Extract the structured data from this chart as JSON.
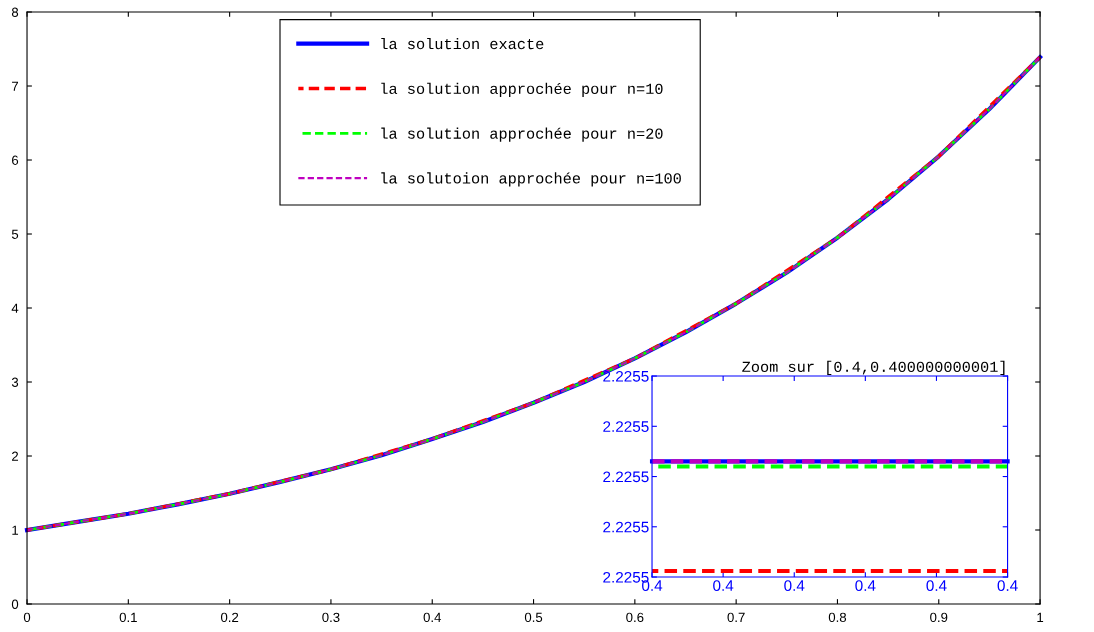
{
  "chart_data": [
    {
      "type": "line",
      "xlim": [
        0,
        1
      ],
      "ylim": [
        0,
        8
      ],
      "xticks": [
        0,
        0.1,
        0.2,
        0.3,
        0.4,
        0.5,
        0.6,
        0.7,
        0.8,
        0.9,
        1
      ],
      "yticks": [
        0,
        1,
        2,
        3,
        4,
        5,
        6,
        7,
        8
      ],
      "grid": false,
      "legend": "top",
      "series": [
        {
          "name": "la solution exacte",
          "color": "#0000ff",
          "line_style": "solid",
          "x": [
            0,
            0.05,
            0.1,
            0.15,
            0.2,
            0.25,
            0.3,
            0.35,
            0.4,
            0.45,
            0.5,
            0.55,
            0.6,
            0.65,
            0.7,
            0.75,
            0.8,
            0.85,
            0.9,
            0.95,
            1
          ],
          "values": [
            1,
            1.11,
            1.22,
            1.35,
            1.49,
            1.65,
            1.82,
            2.01,
            2.23,
            2.46,
            2.72,
            3.0,
            3.32,
            3.67,
            4.06,
            4.48,
            4.95,
            5.47,
            6.05,
            6.69,
            7.39
          ]
        },
        {
          "name": "la solution approchée pour n=10",
          "color": "#ff0000",
          "line_style": "dashed",
          "x": [
            0,
            0.1,
            0.2,
            0.3,
            0.4,
            0.5,
            0.6,
            0.7,
            0.8,
            0.9,
            1
          ],
          "values": [
            1,
            1.22,
            1.49,
            1.82,
            2.23,
            2.72,
            3.32,
            4.06,
            4.95,
            6.05,
            7.39
          ]
        },
        {
          "name": "la solution approchée pour n=20",
          "color": "#00ff00",
          "line_style": "dashed",
          "x": [
            0,
            0.05,
            0.1,
            0.15,
            0.2,
            0.25,
            0.3,
            0.35,
            0.4,
            0.45,
            0.5,
            0.55,
            0.6,
            0.65,
            0.7,
            0.75,
            0.8,
            0.85,
            0.9,
            0.95,
            1
          ],
          "values": [
            1,
            1.11,
            1.22,
            1.35,
            1.49,
            1.65,
            1.82,
            2.01,
            2.23,
            2.46,
            2.72,
            3.0,
            3.32,
            3.67,
            4.06,
            4.48,
            4.95,
            5.47,
            6.05,
            6.69,
            7.39
          ]
        },
        {
          "name": "la solutoion approchée pour n=100",
          "color": "#bf00bf",
          "line_style": "dashed",
          "x": [
            0,
            0.05,
            0.1,
            0.15,
            0.2,
            0.25,
            0.3,
            0.35,
            0.4,
            0.45,
            0.5,
            0.55,
            0.6,
            0.65,
            0.7,
            0.75,
            0.8,
            0.85,
            0.9,
            0.95,
            1
          ],
          "values": [
            1,
            1.11,
            1.22,
            1.35,
            1.49,
            1.65,
            1.82,
            2.01,
            2.23,
            2.46,
            2.72,
            3.0,
            3.32,
            3.67,
            4.06,
            4.48,
            4.95,
            5.47,
            6.05,
            6.69,
            7.39
          ]
        }
      ]
    },
    {
      "type": "line",
      "title": "Zoom sur [0.4,0.400000000001]",
      "xlim": [
        0.4,
        0.400000000001
      ],
      "ylim": [
        2.22554092849,
        2.225540928494
      ],
      "xticks": [
        {
          "value": 0.4,
          "label": "0.4"
        },
        {
          "value": 0.4000000000002,
          "label": "0.4"
        },
        {
          "value": 0.4000000000004,
          "label": "0.4"
        },
        {
          "value": 0.4000000000006,
          "label": "0.4"
        },
        {
          "value": 0.4000000000008,
          "label": "0.4"
        },
        {
          "value": 0.400000000001,
          "label": "0.4"
        }
      ],
      "yticks": [
        {
          "value": 2.22554092849,
          "label": "2.2255"
        },
        {
          "value": 2.225540928491,
          "label": "2.2255"
        },
        {
          "value": 2.225540928492,
          "label": "2.2255"
        },
        {
          "value": 2.225540928493,
          "label": "2.2255"
        },
        {
          "value": 2.225540928494,
          "label": "2.2255"
        }
      ],
      "grid": false,
      "series": [
        {
          "color": "#0000ff",
          "line_style": "solid",
          "x": [
            0.4,
            0.400000000001
          ],
          "values": [
            2.2255409284923,
            2.2255409284923
          ]
        },
        {
          "color": "#ff0000",
          "line_style": "dashed",
          "x": [
            0.4,
            0.400000000001
          ],
          "values": [
            2.22554092849012,
            2.22554092849012
          ]
        },
        {
          "color": "#00ff00",
          "line_style": "dashed",
          "x": [
            0.4,
            0.400000000001
          ],
          "values": [
            2.2255409284922,
            2.2255409284922
          ]
        },
        {
          "color": "#bf00bf",
          "line_style": "dashed",
          "x": [
            0.4,
            0.400000000001
          ],
          "values": [
            2.2255409284923,
            2.2255409284923
          ]
        }
      ]
    }
  ]
}
